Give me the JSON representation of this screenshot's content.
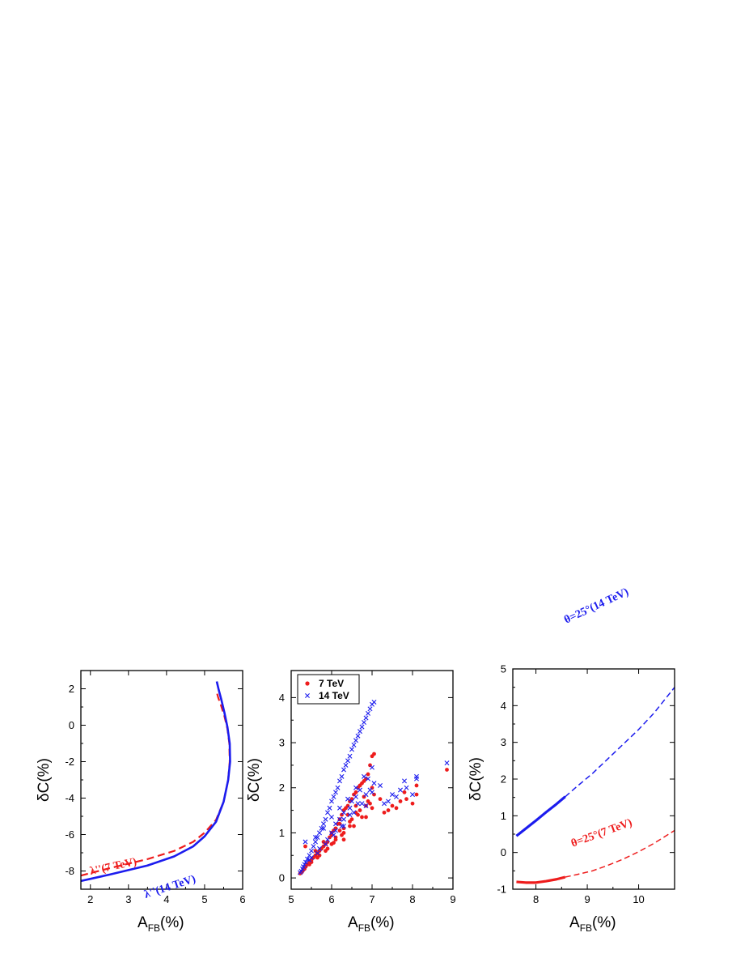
{
  "figure": {
    "panels_count": 3
  },
  "chart_data": [
    {
      "type": "line",
      "xlabel": {
        "main": "A",
        "sub": "FB",
        "unit": "(%)"
      },
      "ylabel": "δC(%)",
      "xlim": [
        1.75,
        6.0
      ],
      "ylim": [
        -9.0,
        3.0
      ],
      "xticks": [
        2,
        3,
        4,
        5,
        6
      ],
      "yticks": [
        -8,
        -6,
        -4,
        -2,
        0,
        2
      ],
      "grid": false,
      "series": [
        {
          "name": "λ''(7 TeV)",
          "color": "#ee1c1c",
          "style": "dashed",
          "x": [
            1.75,
            2.5,
            3.5,
            4.2,
            4.7,
            5.0,
            5.3,
            5.5,
            5.62,
            5.66,
            5.65,
            5.6,
            5.52,
            5.43,
            5.36,
            5.32
          ],
          "y": [
            -8.25,
            -7.85,
            -7.35,
            -6.9,
            -6.4,
            -5.9,
            -5.2,
            -4.2,
            -3.0,
            -2.0,
            -1.0,
            -0.2,
            0.5,
            1.1,
            1.5,
            1.8
          ]
        },
        {
          "name": "λ''(14 TeV)",
          "color": "#1c1cee",
          "style": "solid",
          "x": [
            1.75,
            2.5,
            3.5,
            4.2,
            4.7,
            5.0,
            5.3,
            5.5,
            5.62,
            5.67,
            5.66,
            5.6,
            5.52,
            5.44,
            5.37,
            5.32
          ],
          "y": [
            -8.55,
            -8.2,
            -7.7,
            -7.2,
            -6.65,
            -6.1,
            -5.3,
            -4.2,
            -3.0,
            -2.0,
            -1.0,
            -0.1,
            0.7,
            1.4,
            1.95,
            2.4
          ]
        }
      ],
      "annotations": [
        {
          "text": "λ''(7 TeV)",
          "color": "#ee1c1c"
        },
        {
          "text": "λ''(14 TeV)",
          "color": "#1c1cee"
        }
      ]
    },
    {
      "type": "scatter",
      "xlabel": {
        "main": "A",
        "sub": "FB",
        "unit": "(%)"
      },
      "ylabel": "δC(%)",
      "xlim": [
        5.0,
        9.0
      ],
      "ylim": [
        -0.25,
        4.6
      ],
      "xticks": [
        5,
        6,
        7,
        8,
        9
      ],
      "yticks": [
        0,
        1,
        2,
        3,
        4
      ],
      "grid": false,
      "legend": {
        "placement": "top-left"
      },
      "series": [
        {
          "name": "7 TeV",
          "color": "#ee1c1c",
          "marker": "dot",
          "x": [
            5.22,
            5.25,
            5.28,
            5.3,
            5.33,
            5.36,
            5.4,
            5.45,
            5.5,
            5.55,
            5.6,
            5.65,
            5.7,
            5.75,
            5.8,
            5.85,
            5.9,
            5.95,
            6.0,
            6.05,
            6.1,
            6.15,
            6.2,
            6.25,
            6.3,
            6.35,
            6.4,
            6.45,
            6.5,
            6.55,
            6.6,
            6.65,
            6.7,
            6.75,
            6.8,
            6.85,
            6.9,
            6.95,
            7.0,
            7.05,
            5.35,
            5.6,
            5.8,
            6.0,
            6.2,
            6.4,
            6.6,
            6.8,
            7.0,
            6.1,
            6.3,
            6.5,
            6.7,
            6.9,
            6.2,
            6.45,
            6.6,
            6.85,
            7.0,
            6.0,
            6.3,
            6.55,
            6.75,
            6.95,
            7.3,
            7.6,
            7.85,
            8.1,
            7.2,
            7.5,
            7.8,
            8.1,
            7.4,
            7.7,
            8.0,
            8.85,
            5.5,
            5.7,
            5.9,
            6.1,
            6.3,
            5.45,
            5.65,
            5.85,
            6.05,
            6.25,
            6.45,
            6.65,
            6.85,
            7.05
          ],
          "y": [
            0.1,
            0.12,
            0.15,
            0.18,
            0.2,
            0.25,
            0.3,
            0.35,
            0.4,
            0.45,
            0.5,
            0.55,
            0.6,
            0.65,
            0.7,
            0.75,
            0.8,
            0.9,
            0.95,
            1.05,
            1.1,
            1.2,
            1.3,
            1.4,
            1.5,
            1.55,
            1.6,
            1.7,
            1.75,
            1.85,
            1.9,
            2.0,
            2.05,
            2.1,
            2.15,
            2.2,
            2.3,
            2.5,
            2.7,
            2.75,
            0.7,
            0.6,
            0.8,
            1.0,
            1.2,
            1.4,
            1.6,
            1.8,
            2.0,
            0.9,
            1.1,
            1.3,
            1.5,
            1.7,
            1.05,
            1.25,
            1.45,
            1.35,
            1.55,
            0.75,
            0.85,
            1.15,
            1.35,
            1.65,
            1.45,
            1.55,
            1.75,
            1.85,
            1.75,
            1.6,
            1.9,
            2.05,
            1.5,
            1.7,
            1.65,
            2.4,
            0.35,
            0.5,
            0.65,
            0.85,
            1.0,
            0.3,
            0.45,
            0.6,
            0.78,
            0.95,
            1.15,
            1.4,
            1.6,
            1.85
          ]
        },
        {
          "name": "14 TeV",
          "color": "#1c1cee",
          "marker": "cross",
          "x": [
            5.22,
            5.25,
            5.28,
            5.3,
            5.33,
            5.36,
            5.4,
            5.45,
            5.5,
            5.55,
            5.6,
            5.65,
            5.7,
            5.75,
            5.8,
            5.85,
            5.9,
            5.95,
            6.0,
            6.05,
            6.1,
            6.15,
            6.2,
            6.25,
            6.3,
            6.35,
            6.4,
            6.45,
            6.5,
            6.55,
            6.6,
            6.65,
            6.7,
            6.75,
            6.8,
            6.85,
            6.9,
            6.95,
            7.0,
            7.05,
            5.35,
            5.6,
            5.8,
            6.0,
            6.2,
            6.4,
            6.6,
            6.8,
            7.0,
            6.1,
            6.3,
            6.5,
            6.7,
            6.9,
            6.2,
            6.45,
            6.6,
            6.85,
            7.0,
            6.0,
            6.3,
            6.55,
            6.75,
            6.95,
            7.3,
            7.6,
            7.85,
            8.1,
            7.2,
            7.5,
            7.8,
            8.1,
            7.4,
            7.7,
            8.0,
            8.85,
            5.5,
            5.7,
            5.9,
            6.1,
            6.3,
            5.45,
            5.65,
            5.85,
            6.05,
            6.25,
            6.45,
            6.65,
            6.85,
            7.05
          ],
          "y": [
            0.12,
            0.15,
            0.2,
            0.25,
            0.3,
            0.35,
            0.42,
            0.5,
            0.6,
            0.7,
            0.8,
            0.9,
            1.0,
            1.1,
            1.2,
            1.3,
            1.45,
            1.55,
            1.7,
            1.8,
            1.9,
            2.0,
            2.15,
            2.25,
            2.4,
            2.5,
            2.6,
            2.7,
            2.85,
            2.95,
            3.05,
            3.15,
            3.25,
            3.35,
            3.45,
            3.55,
            3.65,
            3.75,
            3.85,
            3.9,
            0.8,
            0.9,
            1.1,
            1.35,
            1.55,
            1.75,
            2.0,
            2.25,
            2.45,
            1.2,
            1.45,
            1.7,
            1.95,
            2.2,
            1.3,
            1.55,
            1.8,
            1.6,
            1.9,
            1.0,
            1.15,
            1.45,
            1.65,
            1.95,
            1.65,
            1.8,
            2.0,
            2.2,
            2.05,
            1.85,
            2.15,
            2.25,
            1.7,
            1.95,
            1.85,
            2.55,
            0.45,
            0.65,
            0.85,
            1.05,
            1.3,
            0.4,
            0.55,
            0.75,
            0.95,
            1.15,
            1.4,
            1.65,
            1.85,
            2.1
          ]
        }
      ]
    },
    {
      "type": "line",
      "xlabel": {
        "main": "A",
        "sub": "FB",
        "unit": "(%)"
      },
      "ylabel": "δC(%)",
      "xlim": [
        7.55,
        10.7
      ],
      "ylim": [
        -1.0,
        5.0
      ],
      "xticks": [
        8,
        9,
        10
      ],
      "yticks": [
        -1,
        0,
        1,
        2,
        3,
        4,
        5
      ],
      "grid": false,
      "series": [
        {
          "name": "θ=25°(14 TeV) solid",
          "color": "#1c1cee",
          "style": "solid",
          "x": [
            7.62,
            7.8,
            8.0,
            8.2,
            8.4,
            8.57
          ],
          "y": [
            0.45,
            0.65,
            0.87,
            1.1,
            1.32,
            1.52
          ]
        },
        {
          "name": "θ=25°(14 TeV) dashed",
          "color": "#1c1cee",
          "style": "dashed",
          "x": [
            8.57,
            8.8,
            9.1,
            9.4,
            9.7,
            10.0,
            10.3,
            10.7
          ],
          "y": [
            1.52,
            1.8,
            2.15,
            2.55,
            2.95,
            3.35,
            3.8,
            4.5
          ]
        },
        {
          "name": "θ=25°(7 TeV) solid",
          "color": "#ee1c1c",
          "style": "solid",
          "x": [
            7.62,
            7.8,
            8.0,
            8.2,
            8.4,
            8.57
          ],
          "y": [
            -0.8,
            -0.82,
            -0.82,
            -0.78,
            -0.73,
            -0.67
          ]
        },
        {
          "name": "θ=25°(7 TeV) dashed",
          "color": "#ee1c1c",
          "style": "dashed",
          "x": [
            8.57,
            8.8,
            9.1,
            9.4,
            9.7,
            10.0,
            10.3,
            10.7
          ],
          "y": [
            -0.67,
            -0.6,
            -0.5,
            -0.35,
            -0.18,
            0.02,
            0.25,
            0.6
          ]
        }
      ],
      "annotations": [
        {
          "text": "θ=25°(14 TeV)",
          "color": "#1c1cee"
        },
        {
          "text": "θ=25°(7 TeV)",
          "color": "#ee1c1c"
        }
      ]
    }
  ]
}
